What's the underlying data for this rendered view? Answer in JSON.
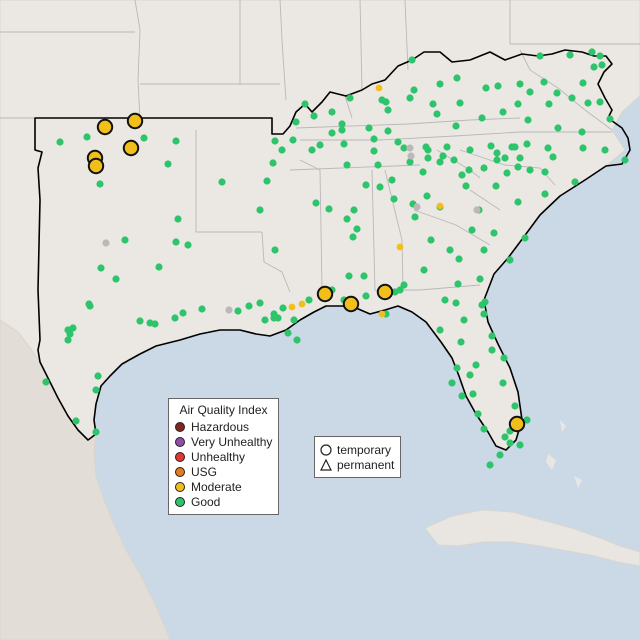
{
  "colors": {
    "water": "#cbd9e6",
    "land": "#ebe8e3",
    "land_edge": "#d9d5cf",
    "border": "#b8b8b8",
    "region_outline": "#000000",
    "mexico": "#e2ddd6",
    "cuba": "#e9e6e1"
  },
  "legend_aqi": {
    "title": "Air Quality Index",
    "items": [
      {
        "label": "Hazardous",
        "color": "#7e2620"
      },
      {
        "label": "Very Unhealthy",
        "color": "#8f4fa8"
      },
      {
        "label": "Unhealthy",
        "color": "#e0382e"
      },
      {
        "label": "USG",
        "color": "#e87a1c"
      },
      {
        "label": "Moderate",
        "color": "#f2be1a"
      },
      {
        "label": "Good",
        "color": "#2ec46b"
      }
    ]
  },
  "legend_shape": {
    "items": [
      {
        "label": "temporary",
        "shape": "circle"
      },
      {
        "label": "permanent",
        "shape": "triangle"
      }
    ]
  },
  "status_colors": {
    "good": "#2ec46b",
    "moderate": "#f2be1a",
    "nodata": "#b9b9b9"
  },
  "monitors": {
    "moderate_large": 9,
    "moderate_small": 6,
    "no_data": 6,
    "good": 230
  }
}
